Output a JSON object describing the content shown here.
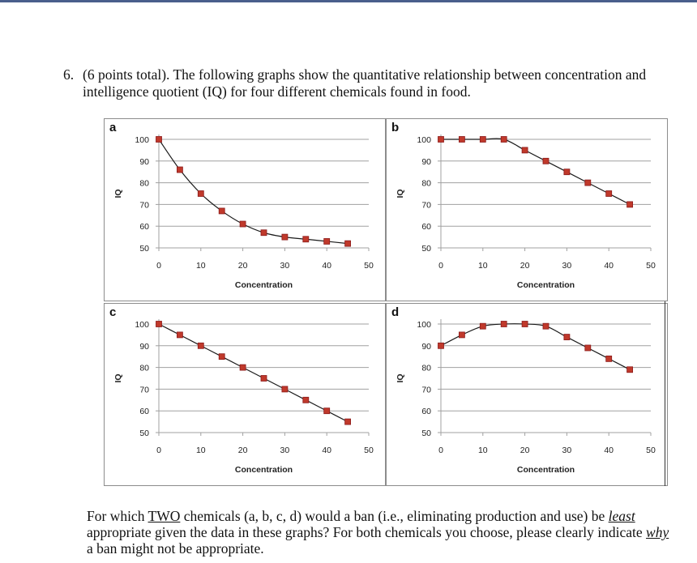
{
  "question": {
    "number": "6.",
    "text": "(6 points total). The following graphs show the quantitative relationship between concentration and intelligence quotient (IQ) for four different chemicals found in food."
  },
  "followup": {
    "part1": "For which ",
    "two": "TWO",
    "part2": " chemicals (a, b, c, d) would a ban (i.e., eliminating production and use) be ",
    "least": "least",
    "part3": " appropriate given the data in these graphs? For both chemicals you choose, please clearly indicate ",
    "why": "why",
    "part4": " a ban might not be appropriate."
  },
  "colors": {
    "marker": "#c0392b",
    "marker_edge": "#8b1a1a",
    "line": "#1a1a1a",
    "grid": "#a0a0a0",
    "border": "#8c8c8c"
  },
  "chart_data": [
    {
      "id": "a",
      "label": "a",
      "type": "line",
      "xlabel": "Concentration",
      "ylabel": "IQ",
      "xlim": [
        0,
        50
      ],
      "ylim": [
        50,
        100
      ],
      "xticks": [
        0,
        10,
        20,
        30,
        40,
        50
      ],
      "yticks": [
        50,
        60,
        70,
        80,
        90,
        100
      ],
      "grid": true,
      "x": [
        0,
        5,
        10,
        15,
        20,
        25,
        30,
        35,
        40,
        45
      ],
      "y": [
        100,
        86,
        75,
        67,
        61,
        57,
        55,
        54,
        53,
        52
      ]
    },
    {
      "id": "b",
      "label": "b",
      "type": "line",
      "xlabel": "Concentration",
      "ylabel": "IQ",
      "xlim": [
        0,
        50
      ],
      "ylim": [
        50,
        100
      ],
      "xticks": [
        0,
        10,
        20,
        30,
        40,
        50
      ],
      "yticks": [
        50,
        60,
        70,
        80,
        90,
        100
      ],
      "grid": true,
      "x": [
        0,
        5,
        10,
        15,
        20,
        25,
        30,
        35,
        40,
        45
      ],
      "y": [
        100,
        100,
        100,
        100,
        95,
        90,
        85,
        80,
        75,
        70
      ]
    },
    {
      "id": "c",
      "label": "c",
      "type": "line",
      "xlabel": "Concentration",
      "ylabel": "IQ",
      "xlim": [
        0,
        50
      ],
      "ylim": [
        50,
        100
      ],
      "xticks": [
        0,
        10,
        20,
        30,
        40,
        50
      ],
      "yticks": [
        50,
        60,
        70,
        80,
        90,
        100
      ],
      "grid": true,
      "x": [
        0,
        5,
        10,
        15,
        20,
        25,
        30,
        35,
        40,
        45
      ],
      "y": [
        100,
        95,
        90,
        85,
        80,
        75,
        70,
        65,
        60,
        55
      ]
    },
    {
      "id": "d",
      "label": "d",
      "type": "line",
      "xlabel": "Concentration",
      "ylabel": "IQ",
      "xlim": [
        0,
        50
      ],
      "ylim": [
        50,
        100
      ],
      "xticks": [
        0,
        10,
        20,
        30,
        40,
        50
      ],
      "yticks": [
        50,
        60,
        70,
        80,
        90,
        100
      ],
      "grid": true,
      "x": [
        0,
        5,
        10,
        15,
        20,
        25,
        30,
        35,
        40,
        45
      ],
      "y": [
        90,
        95,
        99,
        100,
        100,
        99,
        94,
        89,
        84,
        79
      ]
    }
  ]
}
